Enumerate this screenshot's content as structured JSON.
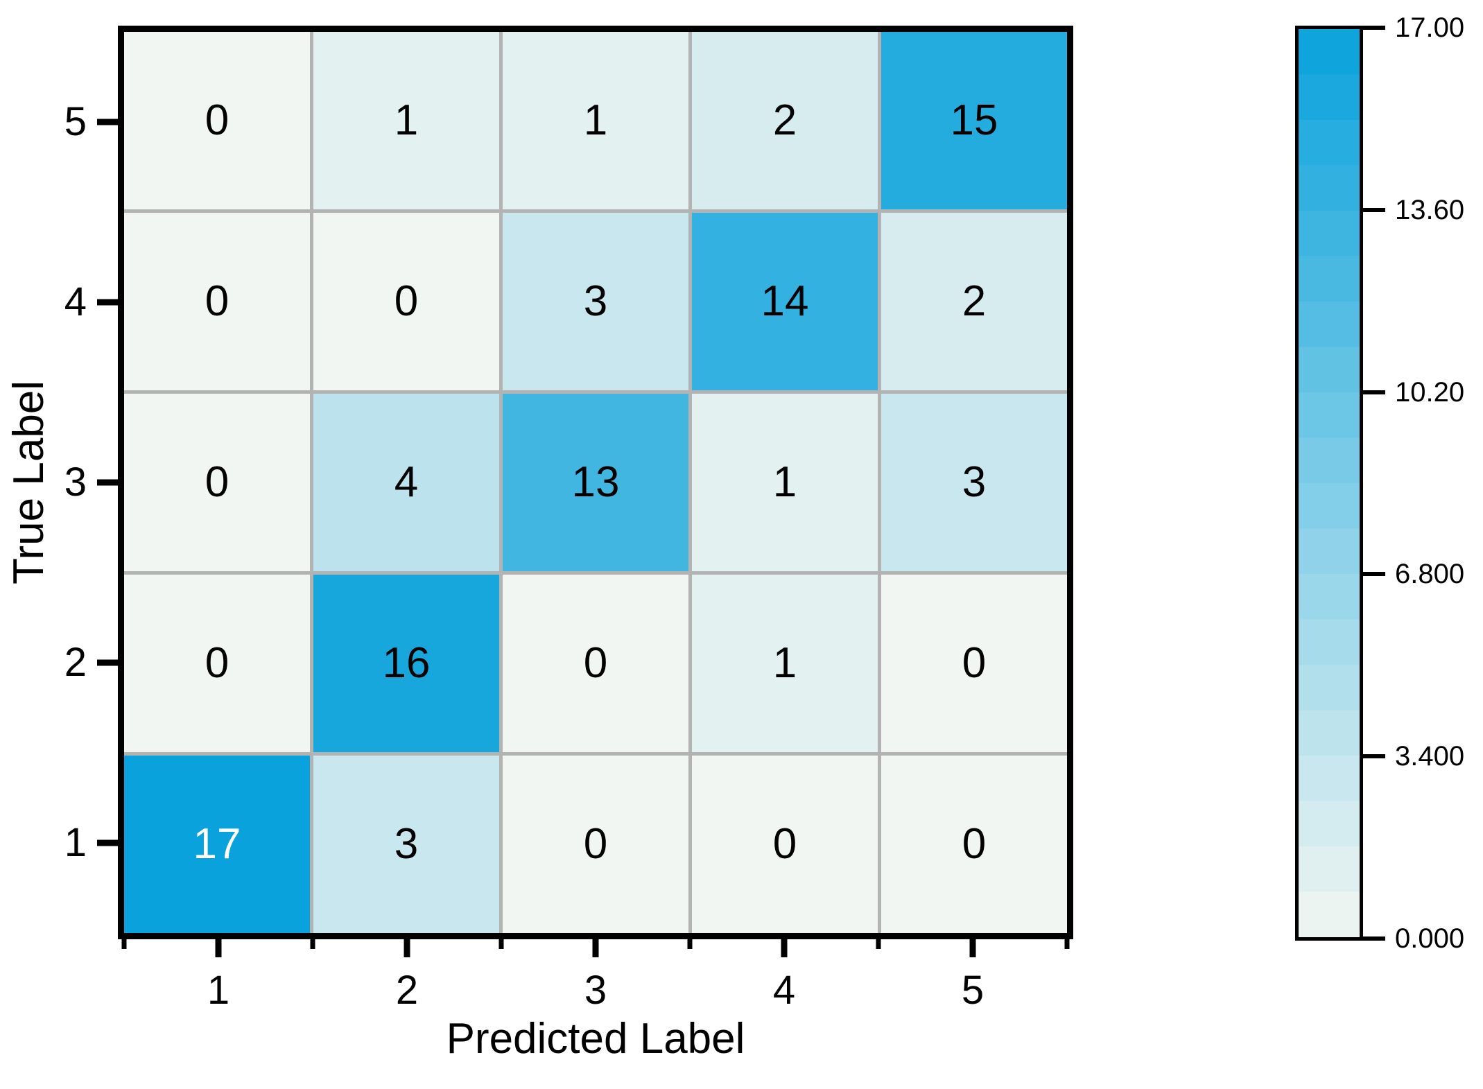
{
  "figure": {
    "background": "#ffffff"
  },
  "chart_data": {
    "type": "heatmap",
    "title": "",
    "xlabel": "Predicted Label",
    "ylabel": "True Label",
    "x_tick_labels": [
      "1",
      "2",
      "3",
      "4",
      "5"
    ],
    "y_tick_labels": [
      "5",
      "4",
      "3",
      "2",
      "1"
    ],
    "rows": [
      [
        0,
        1,
        1,
        2,
        15
      ],
      [
        0,
        0,
        3,
        14,
        2
      ],
      [
        0,
        4,
        13,
        1,
        3
      ],
      [
        0,
        16,
        0,
        1,
        0
      ],
      [
        17,
        3,
        0,
        0,
        0
      ]
    ],
    "vmin": 0,
    "vmax": 17,
    "value_text_light_threshold": 16.5,
    "grid": true,
    "legend_position": "right-colorbar",
    "colorbar": {
      "tick_labels": [
        "17.00",
        "13.60",
        "10.20",
        "6.800",
        "3.400",
        "0.000"
      ],
      "tick_fractions_from_top": [
        0,
        0.2,
        0.4,
        0.6,
        0.8,
        1.0
      ],
      "steps": 20
    },
    "colors": {
      "low": "#f1f6f2",
      "high": "#0aa2dc",
      "gridline": "#b3b3b3",
      "spine": "#000000",
      "value_text_dark": "#000000",
      "value_text_light": "#ffffff"
    }
  }
}
